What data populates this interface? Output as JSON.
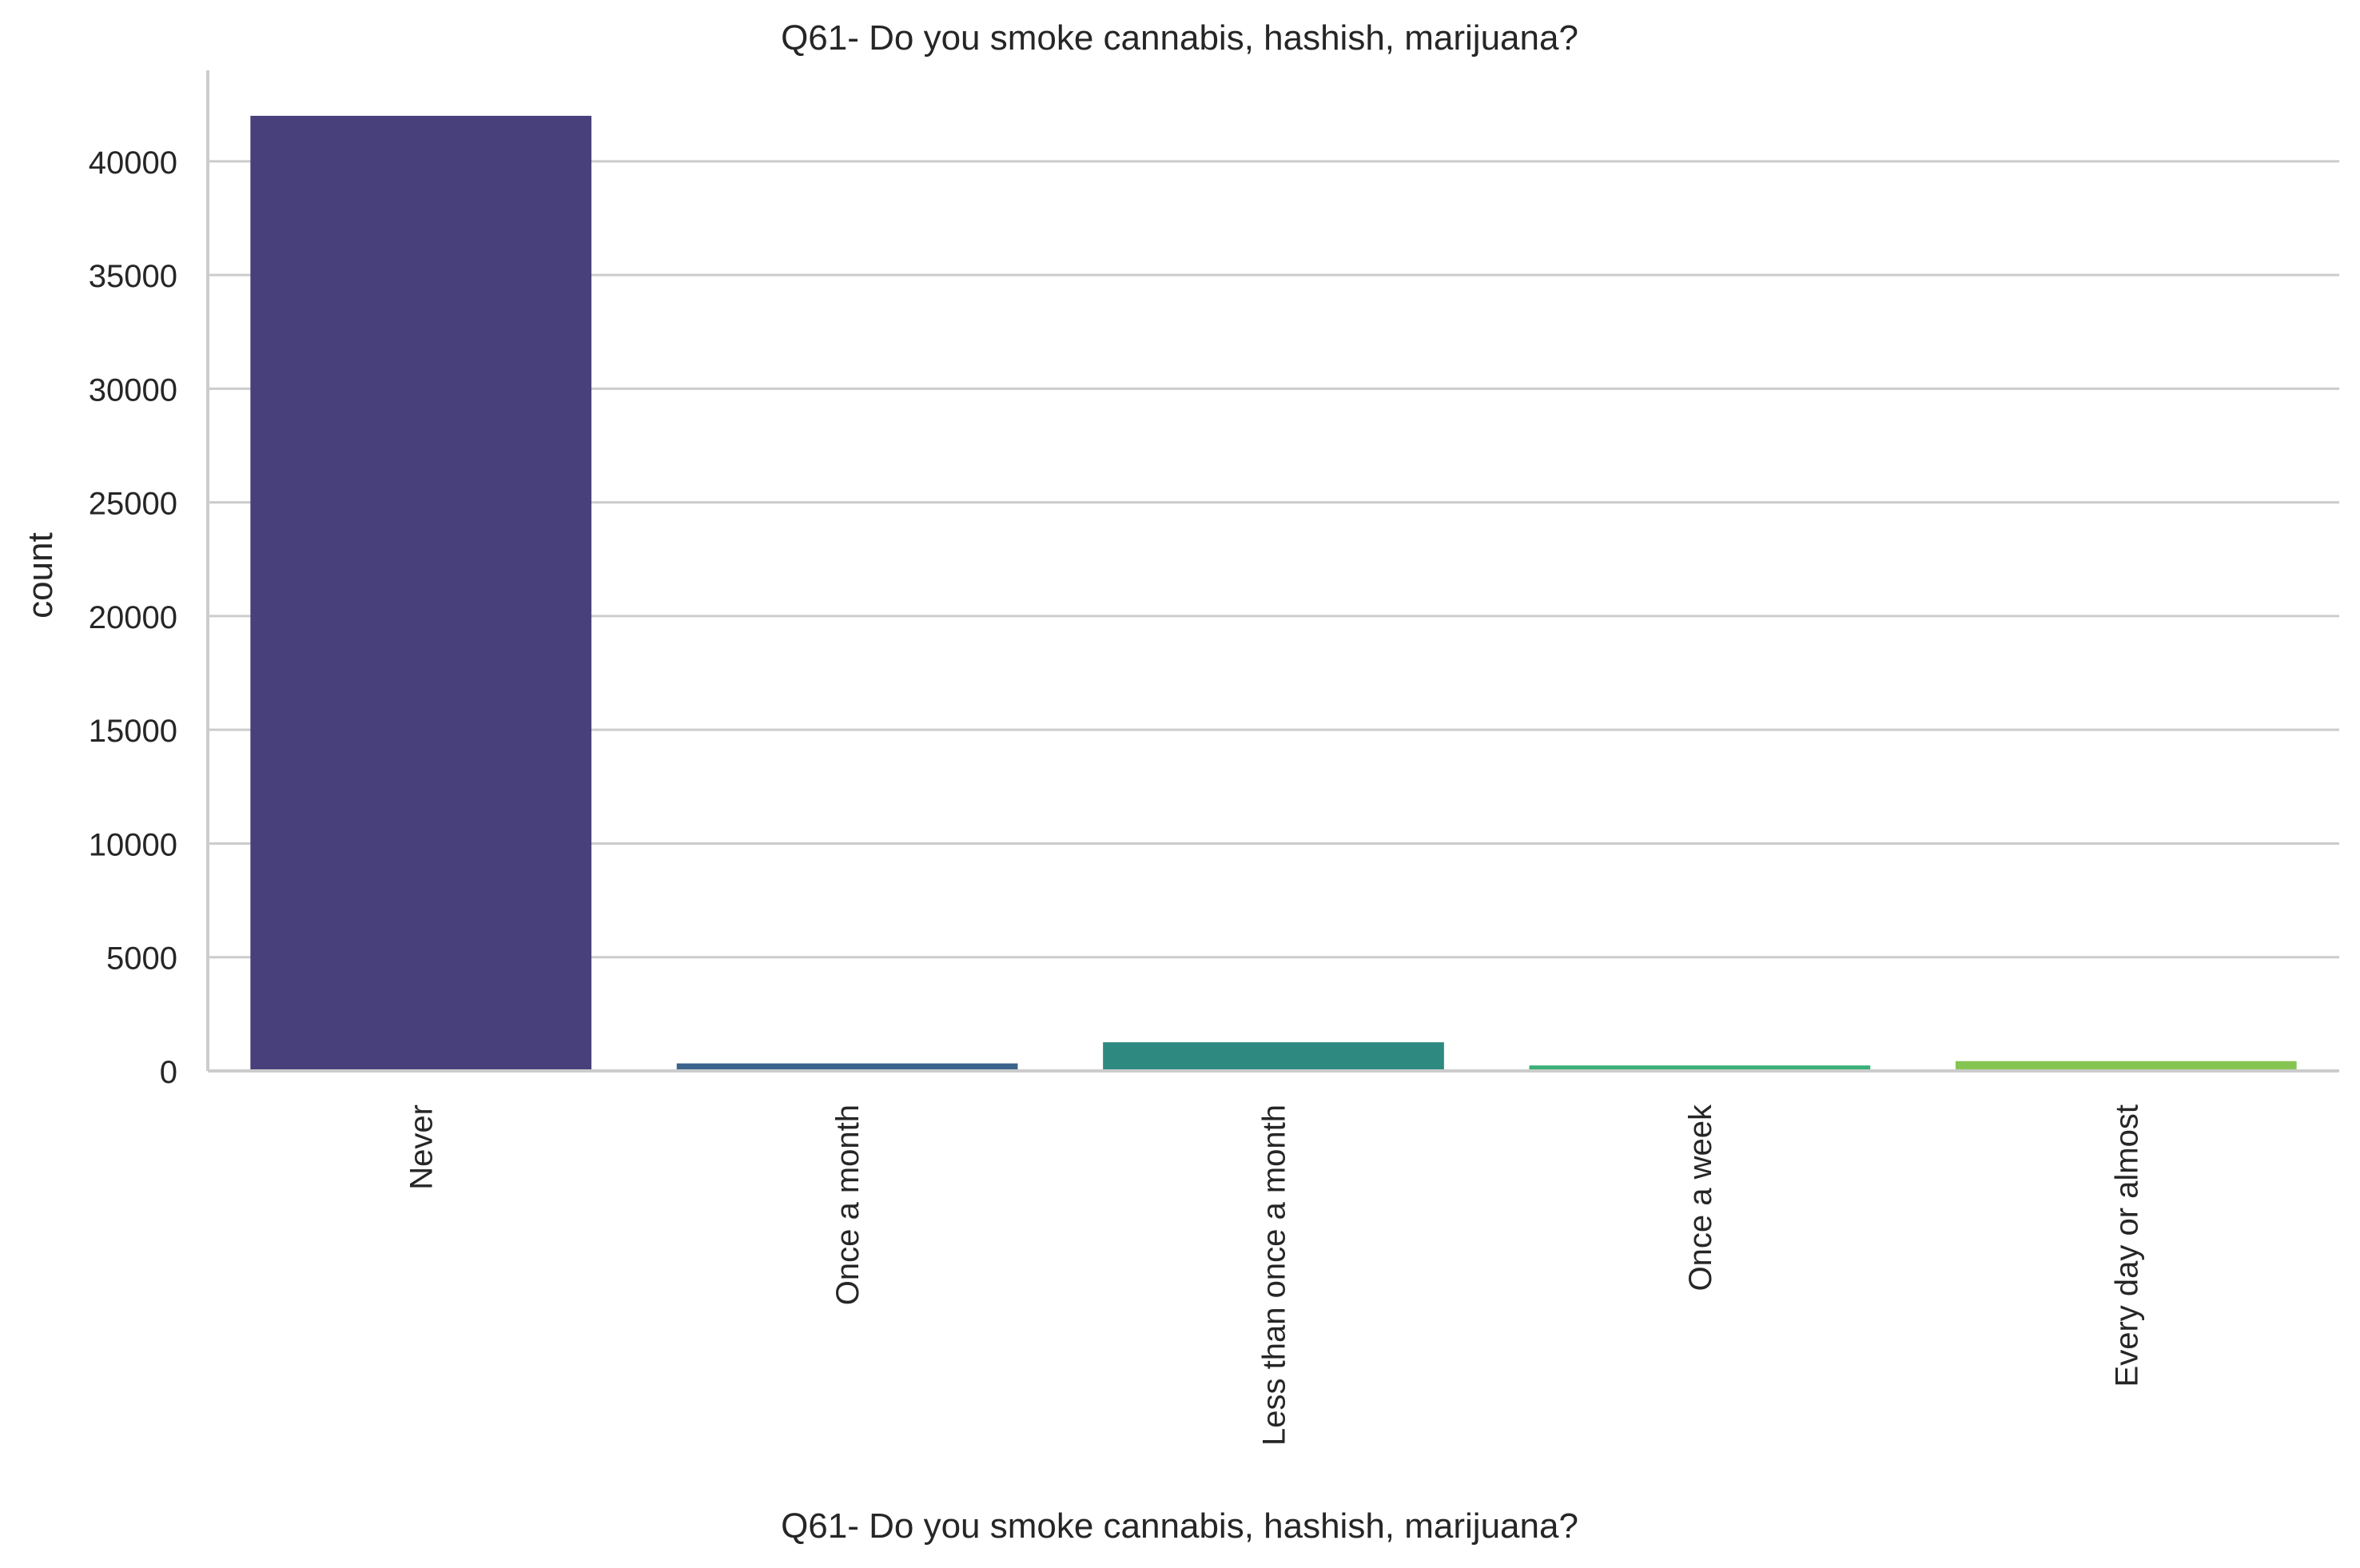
{
  "chart_data": {
    "type": "bar",
    "title": "Q61- Do you smoke cannabis, hashish, marijuana?",
    "xlabel": "Q61- Do you smoke cannabis, hashish, marijuana?",
    "ylabel": "count",
    "categories": [
      "Never",
      "Once a month",
      "Less than once a month",
      "Once a week",
      "Every day or almost"
    ],
    "values": [
      42000,
      330,
      1260,
      240,
      430
    ],
    "colors": [
      "#48407a",
      "#3b648c",
      "#2e8a80",
      "#3aaf77",
      "#86c452"
    ],
    "ylim": [
      0,
      44000
    ],
    "yticks": [
      0,
      5000,
      10000,
      15000,
      20000,
      25000,
      30000,
      35000,
      40000
    ],
    "ytick_labels": [
      "0",
      "5000",
      "10000",
      "15000",
      "20000",
      "25000",
      "30000",
      "35000",
      "40000"
    ],
    "grid": "y",
    "legend": "none"
  }
}
